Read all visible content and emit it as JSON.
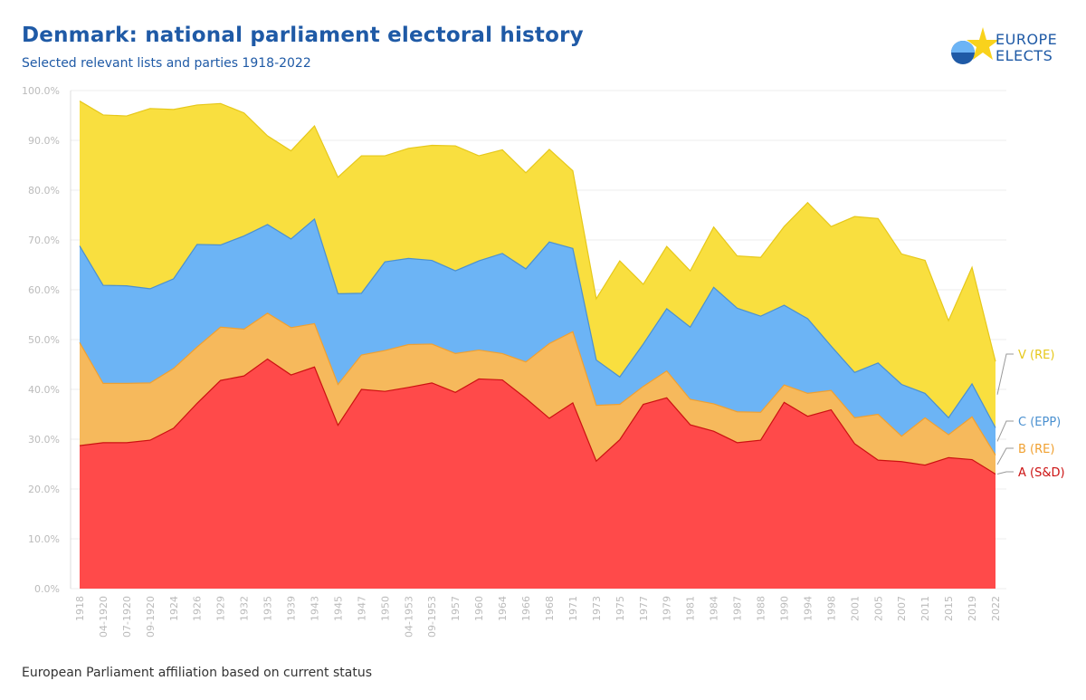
{
  "header": {
    "title": "Denmark: national parliament electoral history",
    "subtitle": "Selected relevant lists and parties 1918-2022"
  },
  "logo": {
    "line1": "EUROPE",
    "line2": "ELECTS"
  },
  "footer": {
    "note": "European Parliament affiliation based on current status"
  },
  "colors": {
    "A": "#ff4a4a",
    "A_line": "#cc1111",
    "B": "#f6b95c",
    "B_line": "#f0a030",
    "C": "#6cb4f5",
    "C_line": "#4a90d0",
    "V": "#f9df3f",
    "V_line": "#e6c81a",
    "grid": "#ececec",
    "title": "#1f5aa6"
  },
  "chart_data": {
    "type": "area",
    "stacked": true,
    "categories": [
      "1918",
      "04-1920",
      "07-1920",
      "09-1920",
      "1924",
      "1926",
      "1929",
      "1932",
      "1935",
      "1939",
      "1943",
      "1945",
      "1947",
      "1950",
      "04-1953",
      "09-1953",
      "1957",
      "1960",
      "1964",
      "1966",
      "1968",
      "1971",
      "1973",
      "1975",
      "1977",
      "1979",
      "1981",
      "1984",
      "1987",
      "1988",
      "1990",
      "1994",
      "1998",
      "2001",
      "2005",
      "2007",
      "2011",
      "2015",
      "2019",
      "2022"
    ],
    "ylim": [
      0,
      100
    ],
    "yticks": [
      "0.0%",
      "10.0%",
      "20.0%",
      "30.0%",
      "40.0%",
      "50.0%",
      "60.0%",
      "70.0%",
      "80.0%",
      "90.0%",
      "100.0%"
    ],
    "grid": true,
    "series": [
      {
        "key": "A",
        "name": "A (S&D)",
        "values": [
          28.7,
          29.3,
          29.3,
          29.8,
          32.2,
          37.2,
          41.8,
          42.7,
          46.1,
          42.9,
          44.5,
          32.8,
          40.0,
          39.6,
          40.4,
          41.3,
          39.4,
          42.1,
          41.9,
          38.2,
          34.2,
          37.3,
          25.6,
          29.9,
          37.0,
          38.3,
          32.9,
          31.6,
          29.3,
          29.8,
          37.4,
          34.6,
          35.9,
          29.1,
          25.8,
          25.5,
          24.8,
          26.3,
          25.9,
          23.0
        ]
      },
      {
        "key": "B",
        "name": "B (RE)",
        "values": [
          20.7,
          11.9,
          11.9,
          11.5,
          12.0,
          11.3,
          10.7,
          9.4,
          9.2,
          9.5,
          8.7,
          8.2,
          6.9,
          8.2,
          8.6,
          7.8,
          7.8,
          5.8,
          5.3,
          7.3,
          15.0,
          14.3,
          11.2,
          7.1,
          3.6,
          5.4,
          5.1,
          5.5,
          6.2,
          5.6,
          3.5,
          4.6,
          3.9,
          5.2,
          9.2,
          5.1,
          9.5,
          4.6,
          8.6,
          3.8
        ]
      },
      {
        "key": "C",
        "name": "C (EPP)",
        "values": [
          19.4,
          19.7,
          19.6,
          18.9,
          18.0,
          20.6,
          16.5,
          18.7,
          17.8,
          17.8,
          21.0,
          18.2,
          12.4,
          17.8,
          17.3,
          16.8,
          16.6,
          17.9,
          20.1,
          18.7,
          20.4,
          16.7,
          9.1,
          5.5,
          8.5,
          12.5,
          14.5,
          23.4,
          20.8,
          19.3,
          16.0,
          15.0,
          8.9,
          9.1,
          10.3,
          10.4,
          4.9,
          3.4,
          6.6,
          5.5
        ]
      },
      {
        "key": "V",
        "name": "V (RE)",
        "values": [
          29.1,
          34.2,
          34.1,
          36.2,
          34.0,
          28.0,
          28.4,
          24.7,
          17.8,
          17.7,
          18.7,
          23.4,
          27.6,
          21.3,
          22.1,
          23.1,
          25.1,
          21.1,
          20.8,
          19.3,
          18.6,
          15.6,
          12.3,
          23.3,
          12.0,
          12.5,
          11.3,
          12.1,
          10.5,
          11.8,
          15.8,
          23.3,
          24.0,
          31.3,
          29.0,
          26.2,
          26.7,
          19.5,
          23.4,
          13.3
        ]
      }
    ]
  }
}
